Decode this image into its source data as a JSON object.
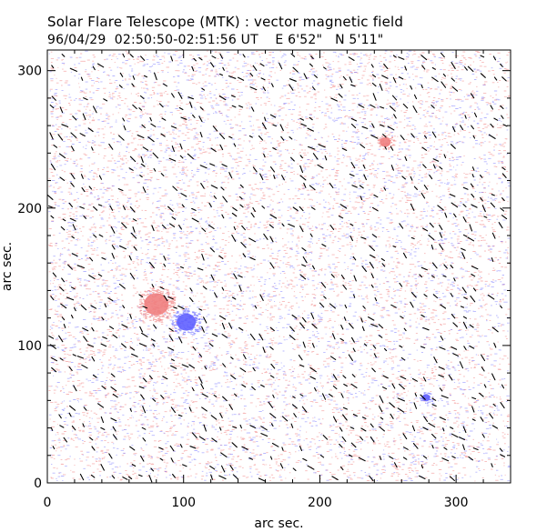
{
  "chart_data": {
    "type": "vector_magnetogram",
    "title": "Solar Flare Telescope (MTK) : vector magnetic field",
    "subtitle": "96/04/29  02:50:50-02:51:56 UT    E 6'52\"   N 5'11\"",
    "xlabel": "arc sec.",
    "ylabel": "arc sec.",
    "xlim": [
      0,
      340
    ],
    "ylim": [
      0,
      315
    ],
    "xticks": [
      0,
      100,
      200,
      300
    ],
    "yticks": [
      0,
      100,
      200,
      300
    ],
    "xtick_labels": [
      "0",
      "100",
      "200",
      "300"
    ],
    "ytick_labels": [
      "0",
      "100",
      "200",
      "300"
    ],
    "positive_polarity_color": "#f08080",
    "negative_polarity_color": "#6060ff",
    "transverse_vector_color": "#000000",
    "features": [
      {
        "name": "positive sunspot",
        "polarity": "positive",
        "x": 80,
        "y": 130,
        "radius": 9
      },
      {
        "name": "negative sunspot",
        "polarity": "negative",
        "x": 102,
        "y": 117,
        "radius": 7
      },
      {
        "name": "positive plage",
        "polarity": "positive",
        "x": 248,
        "y": 248,
        "radius": 4
      },
      {
        "name": "negative plage",
        "polarity": "negative",
        "x": 278,
        "y": 62,
        "radius": 3
      }
    ]
  }
}
